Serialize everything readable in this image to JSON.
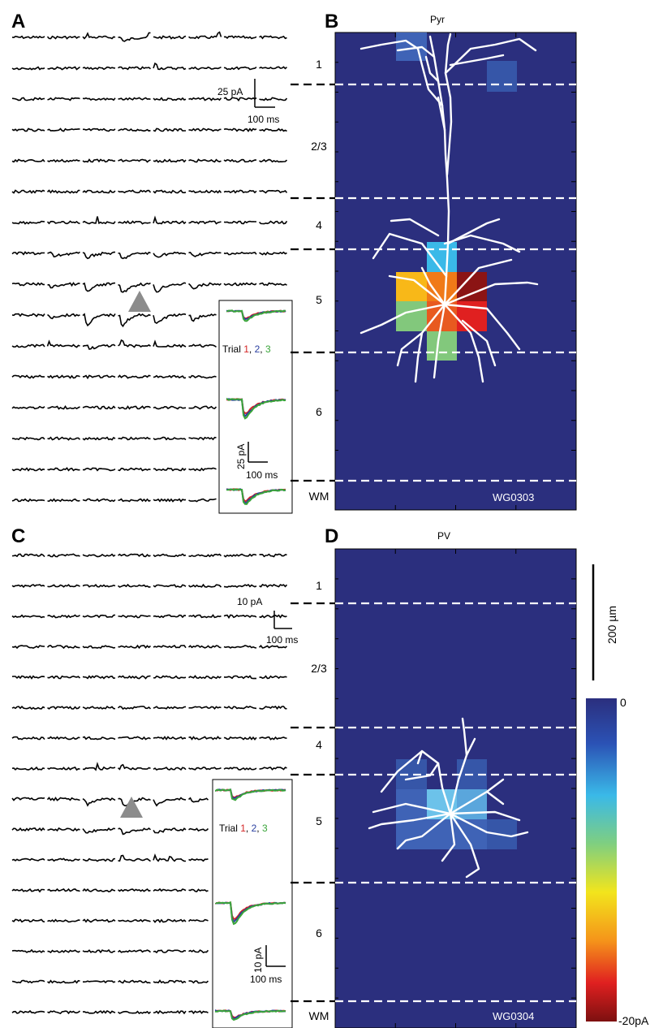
{
  "panels": {
    "A": {
      "letter": "A",
      "scale_y": "25 pA",
      "scale_x": "100 ms"
    },
    "B": {
      "letter": "B",
      "title": "Pyr",
      "cell_id": "WG0303",
      "layers": [
        "1",
        "2/3",
        "4",
        "5",
        "6",
        "WM"
      ]
    },
    "C": {
      "letter": "C",
      "scale_y": "10 pA",
      "scale_x": "100 ms"
    },
    "D": {
      "letter": "D",
      "title": "PV",
      "cell_id": "WG0304",
      "layers": [
        "1",
        "2/3",
        "4",
        "5",
        "6",
        "WM"
      ]
    }
  },
  "insets": {
    "A": {
      "trial_prefix": "Trial ",
      "trial_1": "1",
      "sep_1": ", ",
      "trial_2": "2",
      "sep_2": ", ",
      "trial_3": "3",
      "scale_y": "25 pA",
      "scale_x": "100 ms"
    },
    "C": {
      "trial_prefix": "Trial ",
      "trial_1": "1",
      "sep_1": ", ",
      "trial_2": "2",
      "sep_2": ", ",
      "trial_3": "3",
      "scale_y": "10 pA",
      "scale_x": "100 ms"
    }
  },
  "scalebar": {
    "label": "200 µm"
  },
  "colorbar": {
    "max_label": "0",
    "min_label": "-20pA"
  },
  "colors": {
    "background_map": "#2b2f7e",
    "trial_1": "#d42525",
    "trial_2": "#2a3fa0",
    "trial_3": "#3aa53a",
    "layer_line": "#ffffff",
    "trace": "#000000",
    "stim_marker": "#8c8c8c"
  }
}
